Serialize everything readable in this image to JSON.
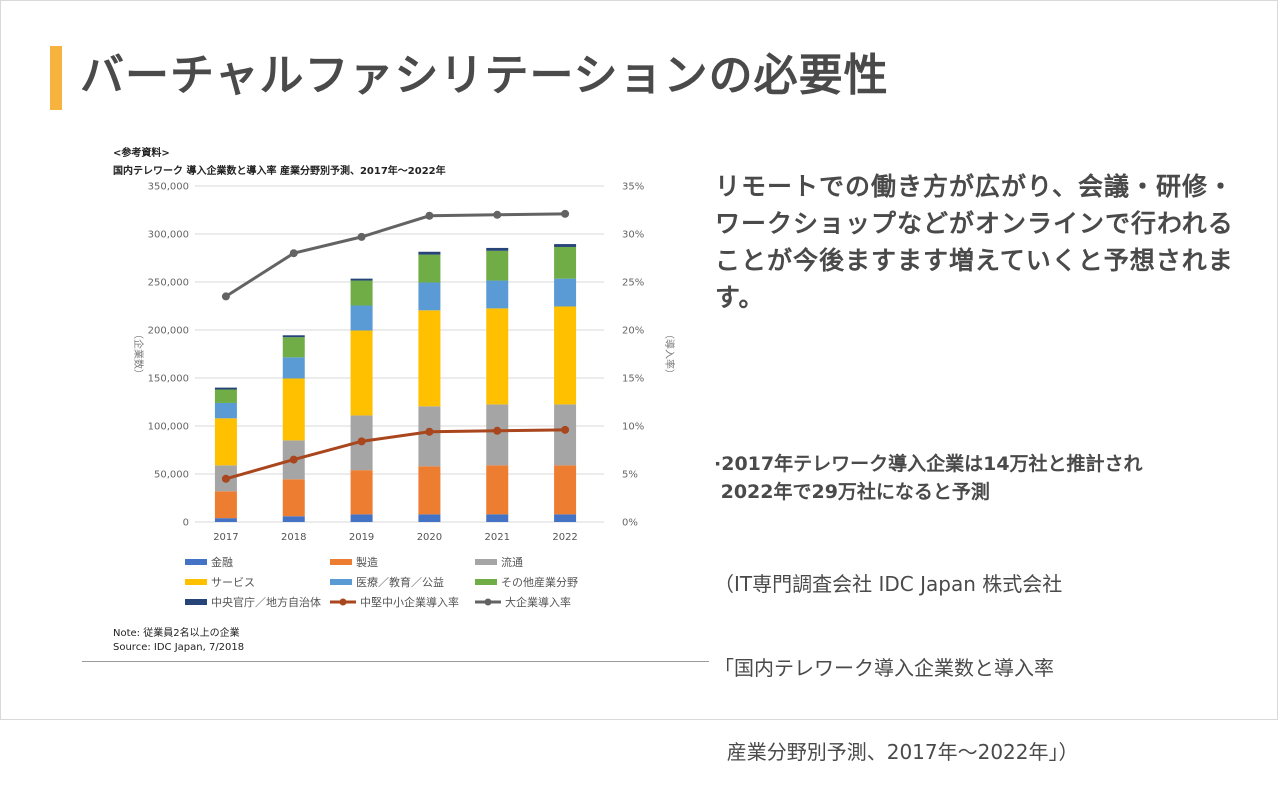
{
  "slide": {
    "title": "バーチャルファシリテーションの必要性",
    "accent_color": "#f6b33d",
    "body_text": "リモートでの働き方が広がり、会議・研修・ワークショップなどがオンラインで行われることが今後ますます増えていくと予想されます。",
    "bullet_lines": [
      "·2017年テレワーク導入企業は14万社と推計され",
      " 2022年で29万社になると予測"
    ],
    "source_lines": [
      "（IT専門調査会社 IDC Japan 株式会社",
      "「国内テレワーク導入企業数と導入率",
      "  産業分野別予測、2017年～2022年」）"
    ]
  },
  "chart_panel": {
    "ref_label": "<参考資料>",
    "note": "Note: 従業員2名以上の企業",
    "source": "Source: IDC Japan, 7/2018"
  },
  "chart_data": {
    "type": "bar",
    "stacked": true,
    "title": "国内テレワーク 導入企業数と導入率 産業分野別予測、2017年～2022年",
    "categories": [
      "2017",
      "2018",
      "2019",
      "2020",
      "2021",
      "2022"
    ],
    "ylabel": "（企業数）",
    "y2label": "（導入率）",
    "ylim": [
      0,
      350000
    ],
    "y2lim": [
      0,
      35
    ],
    "yticks": [
      "0",
      "50,000",
      "100,000",
      "150,000",
      "200,000",
      "250,000",
      "300,000",
      "350,000"
    ],
    "y2ticks": [
      "0%",
      "5%",
      "10%",
      "15%",
      "20%",
      "25%",
      "30%",
      "35%"
    ],
    "grid": true,
    "legend_position": "bottom",
    "series": [
      {
        "name": "金融",
        "color": "#4472c4",
        "values": [
          4000,
          6000,
          8000,
          8000,
          8000,
          8000
        ]
      },
      {
        "name": "製造",
        "color": "#ed7d31",
        "values": [
          28000,
          38500,
          46000,
          50000,
          51000,
          51000
        ]
      },
      {
        "name": "流通",
        "color": "#a5a5a5",
        "values": [
          27000,
          40500,
          57000,
          62500,
          63500,
          63500
        ]
      },
      {
        "name": "サービス",
        "color": "#ffc000",
        "values": [
          49000,
          64500,
          88500,
          100000,
          100000,
          102000
        ]
      },
      {
        "name": "医療／教育／公益",
        "color": "#5b9bd5",
        "values": [
          16000,
          22000,
          26000,
          29000,
          29000,
          29000
        ]
      },
      {
        "name": "その他産業分野",
        "color": "#70ad47",
        "values": [
          14000,
          21000,
          26000,
          29000,
          31000,
          33000
        ]
      },
      {
        "name": "中央官庁／地方自治体",
        "color": "#264478",
        "values": [
          2000,
          2000,
          2000,
          3000,
          3000,
          3000
        ]
      }
    ],
    "line_series": [
      {
        "name": "中堅中小企業導入率",
        "color": "#a9461d",
        "axis": "y2",
        "values": [
          4.5,
          6.5,
          8.4,
          9.4,
          9.5,
          9.6
        ]
      },
      {
        "name": "大企業導入率",
        "color": "#636363",
        "axis": "y2",
        "values": [
          23.5,
          28.0,
          29.7,
          31.9,
          32.0,
          32.1
        ]
      }
    ]
  }
}
